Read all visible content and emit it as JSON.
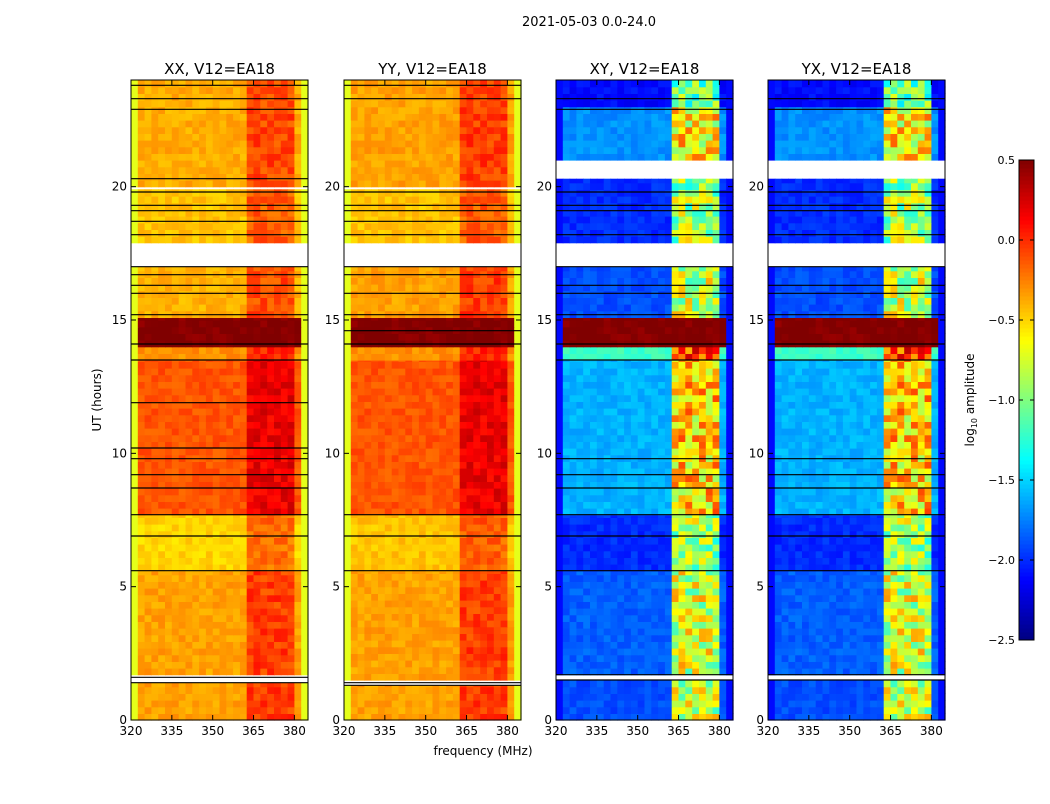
{
  "chart_data": {
    "type": "heatmap",
    "title": "2021-05-03 0.0-24.0",
    "xlabel": "frequency (MHz)",
    "ylabel": "UT (hours)",
    "xlim": [
      320,
      385
    ],
    "ylim": [
      0,
      24
    ],
    "xticks": [
      320,
      335,
      350,
      365,
      380
    ],
    "yticks": [
      0,
      5,
      10,
      15,
      20
    ],
    "xtick_labels": [
      "320",
      "335",
      "350",
      "365",
      "380"
    ],
    "ytick_labels": [
      "0",
      "5",
      "10",
      "15",
      "20"
    ],
    "colorbar": {
      "label_main": "log",
      "label_sub": "10",
      "label_tail": " amplitude",
      "colormap": "jet",
      "range": [
        -2.5,
        0.5
      ],
      "ticks": [
        0.5,
        0.0,
        -0.5,
        -1.0,
        -1.5,
        -2.0,
        -2.5
      ],
      "tick_labels": [
        "0.5",
        "0.0",
        "−0.5",
        "−1.0",
        "−1.5",
        "−2.0",
        "−2.5"
      ]
    },
    "rfi_band_mhz": [
      363,
      380
    ],
    "panels": [
      {
        "title": "XX, V12=EA18",
        "rfi_boost": 0.3,
        "edge_value": -0.7,
        "segments": [
          [
            0,
            1.4,
            -0.35
          ],
          [
            1.7,
            5.6,
            -0.35
          ],
          [
            5.6,
            7.7,
            -0.5
          ],
          [
            7.7,
            13.5,
            -0.12
          ],
          [
            13.5,
            14.0,
            -0.3
          ],
          [
            14.0,
            15.1,
            0.5
          ],
          [
            15.1,
            17.0,
            -0.4
          ],
          [
            17.9,
            19.9,
            -0.45
          ],
          [
            20.0,
            24.0,
            -0.38
          ]
        ],
        "flags": [
          1.4,
          1.6,
          5.6,
          6.9,
          7.7,
          8.7,
          9.2,
          9.8,
          10.2,
          11.9,
          13.5,
          14.1,
          15.2,
          16.0,
          16.3,
          16.7,
          17.0,
          18.2,
          18.7,
          19.1,
          19.3,
          19.8,
          20.3,
          22.9,
          23.3,
          23.8
        ]
      },
      {
        "title": "YY, V12=EA18",
        "rfi_boost": 0.3,
        "edge_value": -0.7,
        "segments": [
          [
            0,
            1.3,
            -0.35
          ],
          [
            1.5,
            5.6,
            -0.35
          ],
          [
            5.6,
            7.7,
            -0.45
          ],
          [
            7.7,
            13.5,
            -0.12
          ],
          [
            13.5,
            14.0,
            -0.3
          ],
          [
            14.0,
            15.1,
            0.5
          ],
          [
            15.1,
            17.0,
            -0.35
          ],
          [
            17.9,
            19.9,
            -0.45
          ],
          [
            20.0,
            24.0,
            -0.35
          ]
        ],
        "flags": [
          1.3,
          1.4,
          5.6,
          6.9,
          7.7,
          14.1,
          14.6,
          15.2,
          16.0,
          16.7,
          17.0,
          18.2,
          18.7,
          19.1,
          19.3,
          19.8,
          23.3,
          23.8
        ]
      },
      {
        "title": "XY, V12=EA18",
        "rfi_boost": 1.1,
        "edge_value": -2.1,
        "segments": [
          [
            0,
            1.5,
            -1.9
          ],
          [
            1.7,
            5.6,
            -1.85
          ],
          [
            5.6,
            7.7,
            -2.0
          ],
          [
            7.7,
            13.5,
            -1.6
          ],
          [
            13.5,
            14.0,
            -1.2
          ],
          [
            14.0,
            15.1,
            0.5
          ],
          [
            15.1,
            17.0,
            -1.9
          ],
          [
            17.9,
            20.3,
            -2.0
          ],
          [
            21.0,
            23.0,
            -1.7
          ],
          [
            23.0,
            24.0,
            -2.1
          ]
        ],
        "flags": [
          1.5,
          1.7,
          5.6,
          6.9,
          7.7,
          8.7,
          9.2,
          9.8,
          13.5,
          14.1,
          15.2,
          16.0,
          16.3,
          17.0,
          18.2,
          19.1,
          19.3,
          19.8,
          22.9,
          23.3
        ]
      },
      {
        "title": "YX, V12=EA18",
        "rfi_boost": 1.1,
        "edge_value": -2.1,
        "segments": [
          [
            0,
            1.5,
            -1.9
          ],
          [
            1.7,
            5.6,
            -1.85
          ],
          [
            5.6,
            7.7,
            -2.0
          ],
          [
            7.7,
            13.5,
            -1.6
          ],
          [
            13.5,
            14.0,
            -1.2
          ],
          [
            14.0,
            15.1,
            0.5
          ],
          [
            15.1,
            17.0,
            -1.9
          ],
          [
            17.9,
            20.3,
            -2.0
          ],
          [
            21.0,
            23.0,
            -1.7
          ],
          [
            23.0,
            24.0,
            -2.1
          ]
        ],
        "flags": [
          1.5,
          1.7,
          5.6,
          6.9,
          7.7,
          8.7,
          9.2,
          9.8,
          13.5,
          14.1,
          15.2,
          16.0,
          16.3,
          17.0,
          18.2,
          19.1,
          19.3,
          19.8,
          22.9,
          23.3
        ]
      }
    ]
  }
}
